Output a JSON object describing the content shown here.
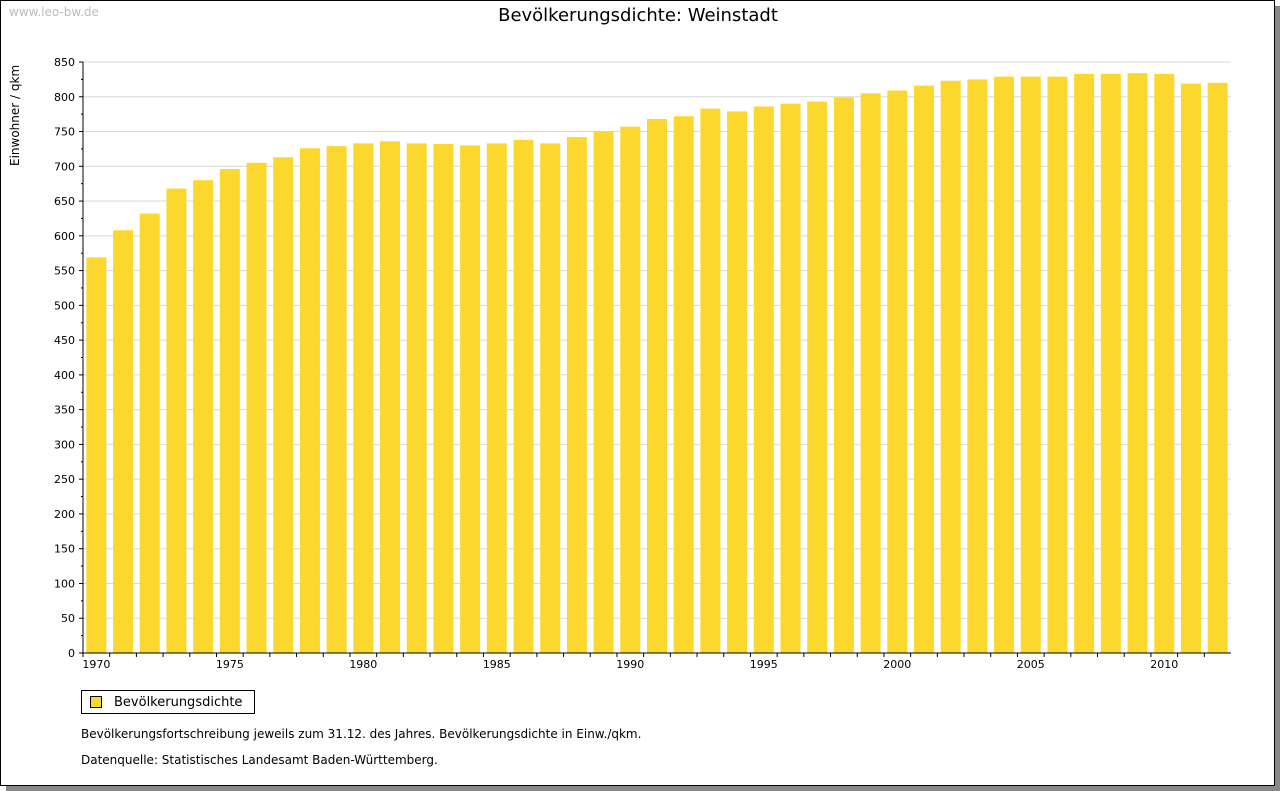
{
  "watermark": "www.leo-bw.de",
  "chart_data": {
    "type": "bar",
    "title": "Bevölkerungsdichte: Weinstadt",
    "xlabel": "",
    "ylabel": "Einwohner / qkm",
    "ylim": [
      0,
      850
    ],
    "yticks": [
      0,
      50,
      100,
      150,
      200,
      250,
      300,
      350,
      400,
      450,
      500,
      550,
      600,
      650,
      700,
      750,
      800,
      850
    ],
    "xtick_labels": [
      "1970",
      "1975",
      "1980",
      "1985",
      "1990",
      "1995",
      "2000",
      "2005",
      "2010"
    ],
    "grid": true,
    "legend_position": "bottom-left",
    "color": "#fcd82e",
    "categories": [
      1970,
      1971,
      1972,
      1973,
      1974,
      1975,
      1976,
      1977,
      1978,
      1979,
      1980,
      1981,
      1982,
      1983,
      1984,
      1985,
      1986,
      1987,
      1988,
      1989,
      1990,
      1991,
      1992,
      1993,
      1994,
      1995,
      1996,
      1997,
      1998,
      1999,
      2000,
      2001,
      2002,
      2003,
      2004,
      2005,
      2006,
      2007,
      2008,
      2009,
      2010,
      2011,
      2012
    ],
    "series": [
      {
        "name": "Bevölkerungsdichte",
        "values": [
          569,
          608,
          632,
          668,
          680,
          696,
          705,
          713,
          726,
          729,
          733,
          736,
          733,
          732,
          730,
          733,
          738,
          733,
          742,
          750,
          757,
          768,
          772,
          783,
          779,
          786,
          790,
          793,
          799,
          805,
          809,
          816,
          823,
          825,
          829,
          829,
          829,
          833,
          833,
          834,
          833,
          819,
          820
        ]
      }
    ]
  },
  "notes": [
    "Bevölkerungsfortschreibung jeweils zum 31.12. des Jahres. Bevölkerungsdichte in Einw./qkm.",
    "Datenquelle: Statistisches Landesamt Baden-Württemberg."
  ]
}
